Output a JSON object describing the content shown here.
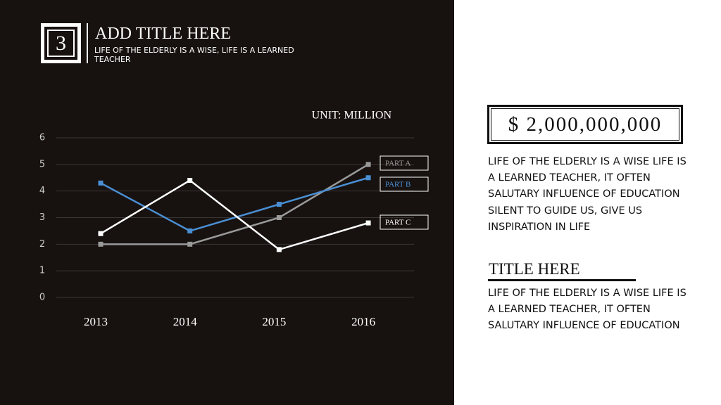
{
  "header": {
    "number": "3",
    "title": "ADD TITLE HERE",
    "subtitle": "LIFE OF THE ELDERLY IS A WISE, LIFE IS A LEARNED TEACHER"
  },
  "chart_data": {
    "type": "line",
    "unit_label": "UNIT: MILLION",
    "categories": [
      "2013",
      "2014",
      "2015",
      "2016"
    ],
    "series": [
      {
        "name": "PART A",
        "color": "#9a9a9a",
        "values": [
          2,
          2,
          3,
          5
        ]
      },
      {
        "name": "PART B",
        "color": "#4a8fd4",
        "values": [
          4.3,
          2.5,
          3.5,
          4.5
        ]
      },
      {
        "name": "PART C",
        "color": "#ffffff",
        "values": [
          2.4,
          4.4,
          1.8,
          2.8
        ]
      }
    ],
    "ylim": [
      0,
      6
    ],
    "yticks": [
      0,
      1,
      2,
      3,
      4,
      5,
      6
    ],
    "grid": true
  },
  "side": {
    "amount": "$ 2,000,000,000",
    "paragraph1": "LIFE OF THE ELDERLY IS A WISE LIFE IS A LEARNED TEACHER, IT OFTEN SALUTARY INFLUENCE OF EDUCATION SILENT TO GUIDE US, GIVE US INSPIRATION IN LIFE",
    "title": "TITLE HERE",
    "paragraph2": "LIFE OF THE ELDERLY IS A WISE LIFE IS A LEARNED TEACHER, IT OFTEN SALUTARY INFLUENCE OF EDUCATION"
  }
}
